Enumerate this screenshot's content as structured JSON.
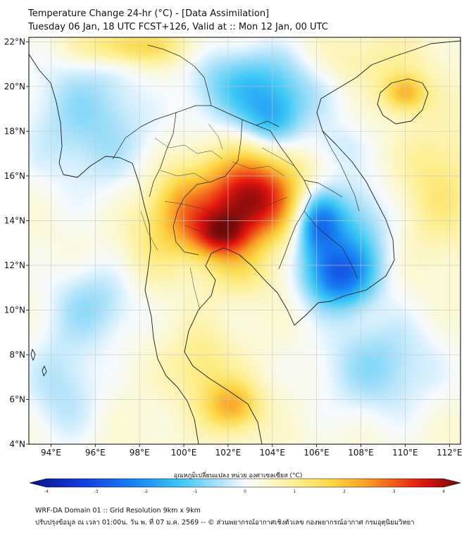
{
  "header": {
    "title": "Temperature Change 24-hr (°C) - [Data Assimilation]",
    "subtitle": "Tuesday 06 Jan, 18 UTC FCST+126, Valid at :: Mon 12 Jan, 00 UTC"
  },
  "map": {
    "lon_range": [
      93,
      112.5
    ],
    "lat_range": [
      4,
      22.2
    ],
    "lon_ticks": [
      "94°E",
      "96°E",
      "98°E",
      "100°E",
      "102°E",
      "104°E",
      "106°E",
      "108°E",
      "110°E",
      "112°E"
    ],
    "lon_values": [
      94,
      96,
      98,
      100,
      102,
      104,
      106,
      108,
      110,
      112
    ],
    "lat_ticks": [
      "4°N",
      "6°N",
      "8°N",
      "10°N",
      "12°N",
      "14°N",
      "16°N",
      "18°N",
      "20°N",
      "22°N"
    ],
    "lat_values": [
      4,
      6,
      8,
      10,
      12,
      14,
      16,
      18,
      20,
      22
    ],
    "field_blobs": [
      {
        "lon": 103.0,
        "lat": 15.0,
        "amp": 3.4,
        "sx": 1.7,
        "sy": 1.4
      },
      {
        "lon": 101.6,
        "lat": 13.3,
        "amp": 2.2,
        "sx": 1.0,
        "sy": 0.8
      },
      {
        "lon": 99.8,
        "lat": 14.5,
        "amp": 1.3,
        "sx": 0.9,
        "sy": 1.2
      },
      {
        "lon": 102.5,
        "lat": 11.6,
        "amp": 0.6,
        "sx": 1.2,
        "sy": 0.8
      },
      {
        "lon": 107.0,
        "lat": 11.5,
        "amp": -2.3,
        "sx": 1.1,
        "sy": 1.0
      },
      {
        "lon": 106.0,
        "lat": 13.9,
        "amp": -2.0,
        "sx": 0.7,
        "sy": 1.0
      },
      {
        "lon": 107.3,
        "lat": 13.6,
        "amp": -1.4,
        "sx": 1.4,
        "sy": 1.6
      },
      {
        "lon": 103.0,
        "lat": 20.0,
        "amp": -1.6,
        "sx": 2.6,
        "sy": 1.3
      },
      {
        "lon": 104.0,
        "lat": 18.4,
        "amp": -1.2,
        "sx": 0.9,
        "sy": 0.9
      },
      {
        "lon": 95.8,
        "lat": 18.5,
        "amp": -1.0,
        "sx": 2.2,
        "sy": 2.4
      },
      {
        "lon": 96.0,
        "lat": 10.3,
        "amp": -0.9,
        "sx": 1.5,
        "sy": 1.3
      },
      {
        "lon": 94.5,
        "lat": 6.5,
        "amp": -0.8,
        "sx": 1.3,
        "sy": 1.8
      },
      {
        "lon": 108.8,
        "lat": 7.5,
        "amp": -1.0,
        "sx": 2.0,
        "sy": 1.7
      },
      {
        "lon": 106.8,
        "lat": 17.3,
        "amp": -0.5,
        "sx": 1.0,
        "sy": 0.8
      },
      {
        "lon": 110.0,
        "lat": 19.7,
        "amp": 1.6,
        "sx": 0.7,
        "sy": 0.6
      },
      {
        "lon": 97.5,
        "lat": 21.8,
        "amp": 1.4,
        "sx": 1.8,
        "sy": 0.6
      },
      {
        "lon": 102.2,
        "lat": 5.7,
        "amp": 1.7,
        "sx": 0.9,
        "sy": 0.8
      },
      {
        "lon": 100.8,
        "lat": 7.5,
        "amp": 0.8,
        "sx": 1.0,
        "sy": 1.2
      },
      {
        "lon": 111.5,
        "lat": 15.5,
        "amp": 0.8,
        "sx": 1.2,
        "sy": 2.0
      },
      {
        "lon": 99.5,
        "lat": 20.0,
        "amp": 0.6,
        "sx": 1.4,
        "sy": 1.2
      },
      {
        "lon": 108.0,
        "lat": 21.0,
        "amp": 0.6,
        "sx": 2.0,
        "sy": 1.0
      },
      {
        "lon": 98.5,
        "lat": 13.0,
        "amp": 0.6,
        "sx": 1.0,
        "sy": 1.5
      }
    ],
    "field_baseline": 0.35
  },
  "colorbar": {
    "label": "อุณหภูมิเปลี่ยนแปลง หน่วย องศาเซลเซียส (°C)",
    "min": -4,
    "max": 4,
    "ticks": [
      "-4",
      "-3",
      "-2",
      "-1",
      "0",
      "1",
      "2",
      "3",
      "4"
    ],
    "tick_values": [
      -4,
      -3,
      -2,
      -1,
      0,
      1,
      2,
      3,
      4
    ]
  },
  "footer": {
    "line1": "WRF-DA Domain 01 :: Grid Resolution 9km x 9km",
    "line2": "ปรับปรุงข้อมูล ณ เวลา 01:00น. วัน พ. ที่ 07 ม.ค. 2569 -- © ส่วนพยากรณ์อากาศเชิงตัวเลข กองพยากรณ์อากาศ กรมอุตุนิยมวิทยา"
  },
  "colors": {
    "grid": "#c8c8c8",
    "coast": "#1a1a1a",
    "frame": "#000000"
  }
}
